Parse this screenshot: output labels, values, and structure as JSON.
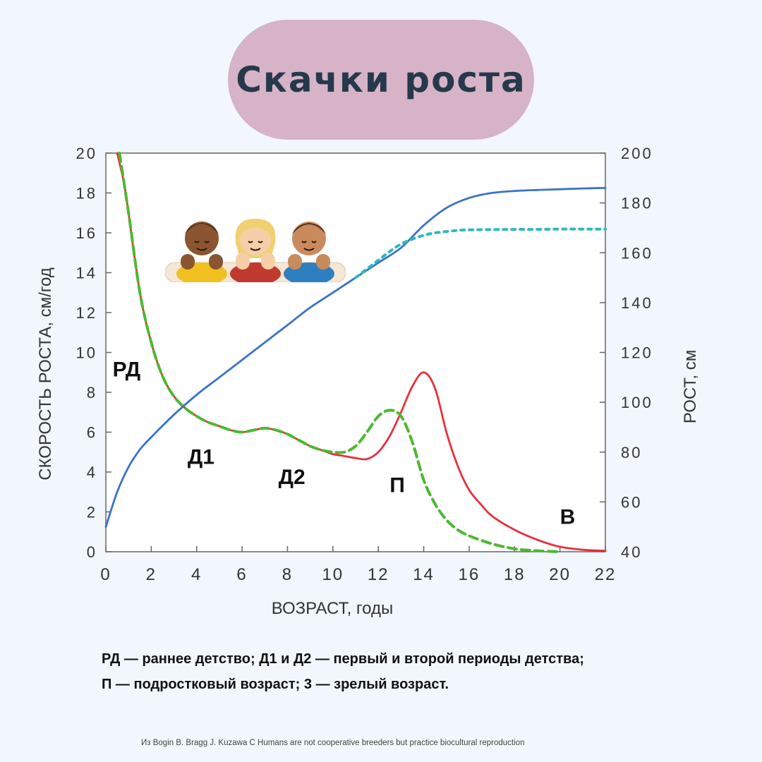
{
  "title": "Скачки роста",
  "caption": {
    "line1": "РД — раннее детство; Д1 и Д2  — первый и второй периоды детства;",
    "line2": "П — подростковый возраст; 3 — зрелый возраст."
  },
  "source": "Из  Bogin B. Bragg J. Kuzawa C  Humans are not cooperative breeders but practice biocultural reproduction",
  "chart_data": {
    "type": "line",
    "xlabel": "ВОЗРАСТ, годы",
    "ylabel_left": "СКОРОСТЬ РОСТА, см/год",
    "ylabel_right": "РОСТ, см",
    "xlim": [
      0,
      22
    ],
    "ylim_left": [
      0,
      20
    ],
    "ylim_right": [
      40,
      200
    ],
    "x_ticks": [
      "0",
      "2",
      "4",
      "6",
      "8",
      "10",
      "12",
      "14",
      "16",
      "18",
      "20",
      "22"
    ],
    "y_left_ticks": [
      "0",
      "2",
      "4",
      "6",
      "8",
      "10",
      "12",
      "14",
      "16",
      "18",
      "20"
    ],
    "y_right_ticks": [
      "40",
      "60",
      "80",
      "100",
      "120",
      "140",
      "160",
      "180",
      "200"
    ],
    "colors": {
      "velocity_solid": "#e8303a",
      "velocity_dashed": "#4cb832",
      "height_solid": "#3a72c8",
      "height_dotted": "#2fb8c0"
    },
    "series": [
      {
        "axis": "left",
        "style": "solid",
        "x": [
          0.5,
          0.8,
          1.0,
          1.5,
          2.0,
          2.5,
          3.0,
          3.5,
          4.0,
          4.5,
          5.0,
          5.5,
          6.0,
          6.5,
          7.0,
          7.5,
          8.0,
          8.5,
          9.0,
          9.5,
          10.0,
          10.5,
          11.0,
          11.5,
          12.0,
          12.5,
          13.0,
          13.5,
          14.0,
          14.5,
          15.0,
          15.5,
          16.0,
          16.5,
          17.0,
          18.0,
          19.0,
          20.0,
          21.0,
          22.0
        ],
        "y": [
          20,
          18.5,
          17.0,
          13.0,
          10.5,
          8.8,
          7.8,
          7.2,
          6.8,
          6.5,
          6.3,
          6.1,
          6.0,
          6.1,
          6.2,
          6.1,
          5.9,
          5.6,
          5.3,
          5.1,
          4.9,
          4.8,
          4.7,
          4.65,
          5.0,
          5.8,
          7.0,
          8.3,
          9.0,
          8.2,
          6.0,
          4.3,
          3.1,
          2.4,
          1.8,
          1.1,
          0.6,
          0.25,
          0.1,
          0.05
        ]
      },
      {
        "axis": "left",
        "style": "dashed",
        "x": [
          0.6,
          1.0,
          1.5,
          2.0,
          2.5,
          3.0,
          3.5,
          4.0,
          4.5,
          5.0,
          5.5,
          6.0,
          6.5,
          7.0,
          7.5,
          8.0,
          8.5,
          9.0,
          9.5,
          10.0,
          10.5,
          11.0,
          11.5,
          12.0,
          12.5,
          13.0,
          13.5,
          14.0,
          14.5,
          15.0,
          15.5,
          16.0,
          17.0,
          18.0,
          19.0,
          20.0
        ],
        "y": [
          20,
          17.0,
          13.0,
          10.5,
          8.8,
          7.8,
          7.2,
          6.8,
          6.5,
          6.3,
          6.1,
          6.0,
          6.1,
          6.2,
          6.1,
          5.9,
          5.6,
          5.3,
          5.1,
          5.0,
          5.0,
          5.3,
          6.0,
          6.8,
          7.1,
          6.8,
          5.5,
          3.6,
          2.4,
          1.6,
          1.1,
          0.8,
          0.4,
          0.15,
          0.05,
          0.0
        ]
      },
      {
        "axis": "right",
        "style": "solid",
        "x": [
          0.0,
          0.5,
          1.0,
          1.5,
          2.0,
          3.0,
          4.0,
          5.0,
          6.0,
          7.0,
          8.0,
          9.0,
          10.0,
          11.0,
          12.0,
          13.0,
          14.0,
          15.0,
          16.0,
          17.0,
          18.0,
          19.0,
          20.0,
          21.0,
          22.0
        ],
        "y": [
          50,
          64,
          74,
          81,
          86,
          95,
          103,
          110,
          117,
          124,
          131,
          138,
          144,
          150,
          156,
          162,
          171,
          178,
          182,
          184,
          184.8,
          185.2,
          185.5,
          185.8,
          186
        ]
      },
      {
        "axis": "right",
        "style": "dotted",
        "x": [
          11.0,
          11.5,
          12.0,
          12.5,
          13.0,
          13.5,
          14.0,
          14.5,
          15.0,
          15.5,
          16.0,
          17.0,
          18.0,
          19.0,
          20.0,
          21.0,
          22.0
        ],
        "y": [
          150,
          153.5,
          157,
          160.5,
          163.5,
          165.5,
          167,
          168,
          168.5,
          169,
          169.2,
          169.3,
          169.4,
          169.4,
          169.5,
          169.5,
          169.5
        ]
      }
    ],
    "annotations": [
      {
        "text": "РД",
        "x": 0.3,
        "y": 8.8
      },
      {
        "text": "Д1",
        "x": 3.6,
        "y": 4.4
      },
      {
        "text": "Д2",
        "x": 7.6,
        "y": 3.4
      },
      {
        "text": "П",
        "x": 12.5,
        "y": 3.0
      },
      {
        "text": "В",
        "x": 20.0,
        "y": 1.4
      }
    ]
  }
}
